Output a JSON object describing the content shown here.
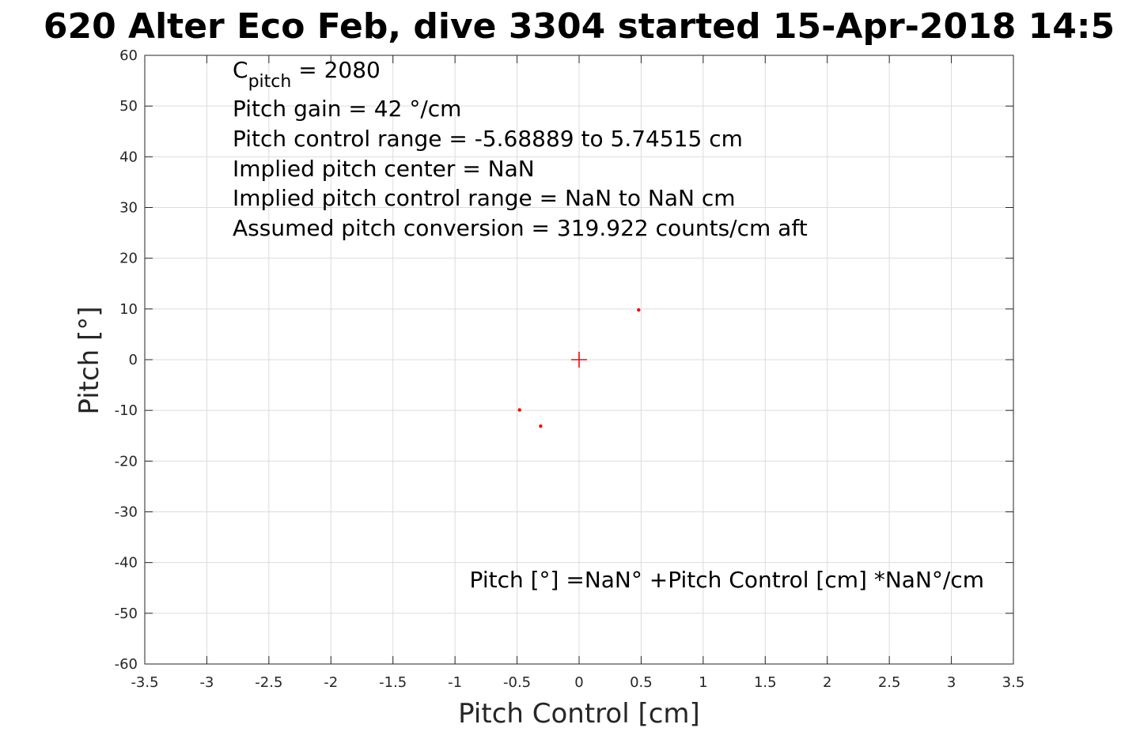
{
  "chart_data": {
    "type": "scatter",
    "title": "620 Alter Eco Feb, dive 3304 started 15-Apr-2018 14:5",
    "xlabel": "Pitch Control [cm]",
    "ylabel": "Pitch [°]",
    "xlim": [
      -3.5,
      3.5
    ],
    "ylim": [
      -60,
      60
    ],
    "grid": true,
    "x_ticks": [
      -3.5,
      -3,
      -2.5,
      -2,
      -1.5,
      -1,
      -0.5,
      0,
      0.5,
      1,
      1.5,
      2,
      2.5,
      3,
      3.5
    ],
    "x_tick_labels": [
      "-3.5",
      "-3",
      "-2.5",
      "-2",
      "-1.5",
      "-1",
      "-0.5",
      "0",
      "0.5",
      "1",
      "1.5",
      "2",
      "2.5",
      "3",
      "3.5"
    ],
    "y_ticks": [
      60,
      50,
      40,
      30,
      20,
      10,
      0,
      -10,
      -20,
      -30,
      -40,
      -50,
      -60
    ],
    "y_tick_labels": [
      "60",
      "50",
      "40",
      "30",
      "20",
      "10",
      "0",
      "-10",
      "-20",
      "-30",
      "-40",
      "-50",
      "-60"
    ],
    "points": [
      {
        "x": 0.48,
        "y": 9.8
      },
      {
        "x": -0.48,
        "y": -9.9
      },
      {
        "x": -0.31,
        "y": -13.1
      }
    ],
    "center_marker": {
      "x": 0,
      "y": 0
    },
    "point_color": "#ff0000",
    "annotations": {
      "cpitch_prefix": "C",
      "cpitch_sub": "pitch",
      "cpitch_value": " = 2080",
      "lines": [
        "Pitch gain = 42 °/cm",
        "Pitch control range = -5.68889 to 5.74515 cm",
        "Implied pitch center = NaN",
        "Implied pitch control range = NaN to NaN cm",
        "Assumed pitch conversion = 319.922 counts/cm aft"
      ],
      "fit_equation": "Pitch [°] =NaN° +Pitch Control [cm] *NaN°/cm"
    }
  }
}
